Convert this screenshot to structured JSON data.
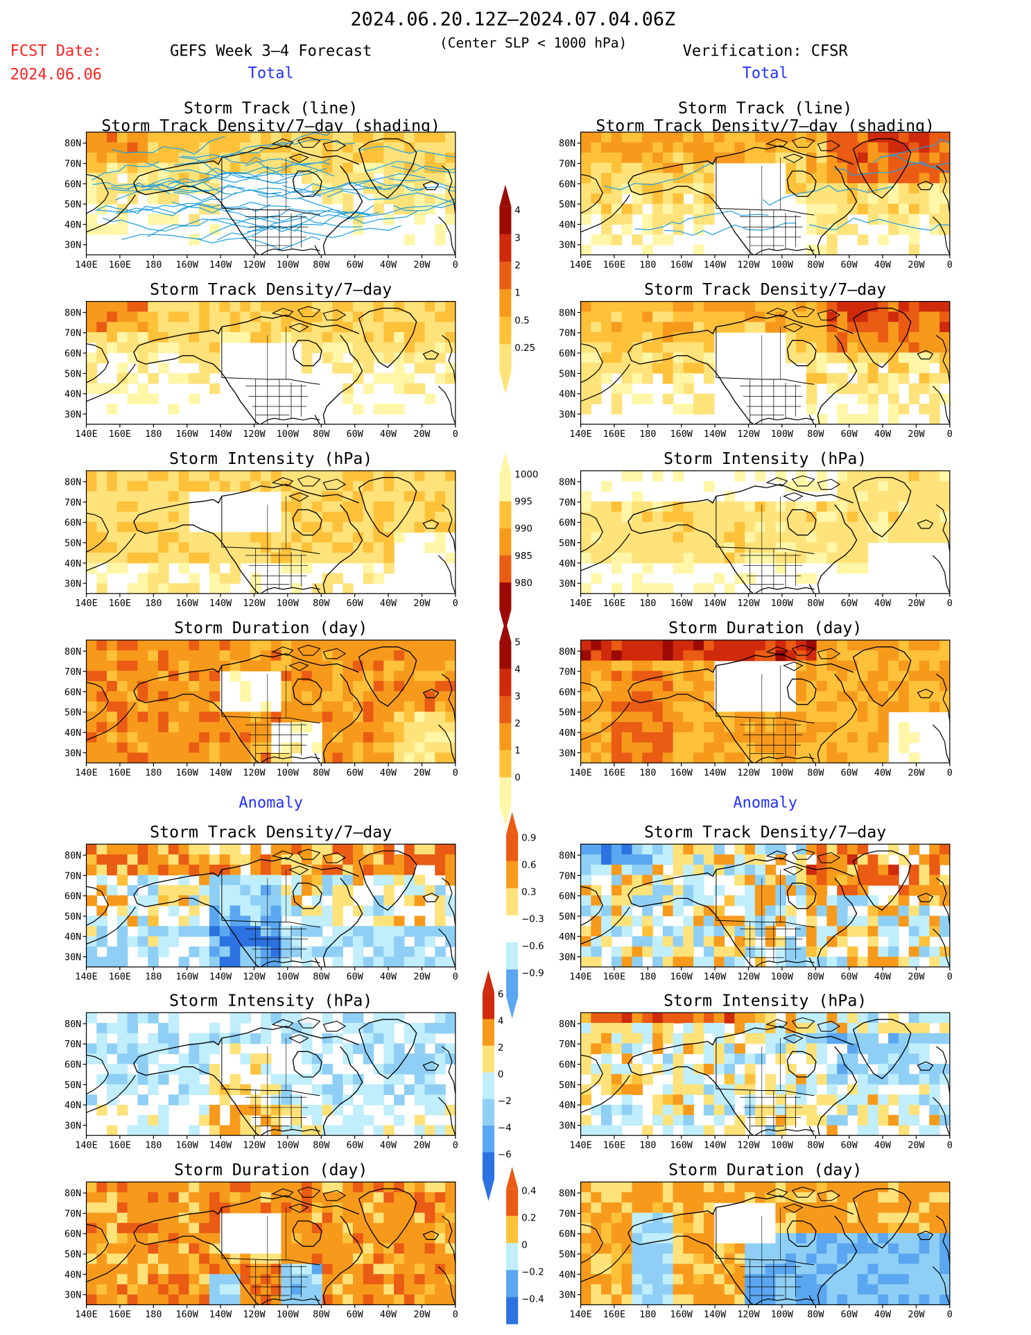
{
  "header": {
    "period": "2024.06.20.12Z–2024.07.04.06Z",
    "fcst_label": "FCST Date:",
    "fcst_date": "2024.06.06",
    "model": "GEFS Week 3–4 Forecast",
    "criterion": "(Center SLP < 1000 hPa)",
    "verification": "Verification: CFSR",
    "total_label": "Total",
    "anomaly_label": "Anomaly"
  },
  "panel_titles": {
    "track_line": "Storm Track (line)",
    "track_shading": "Storm Track Density/7–day (shading)",
    "density": "Storm Track Density/7–day",
    "intensity": "Storm Intensity (hPa)",
    "duration": "Storm Duration (day)"
  },
  "axes": {
    "lon_ticks": [
      "140E",
      "160E",
      "180",
      "160W",
      "140W",
      "120W",
      "100W",
      "80W",
      "60W",
      "40W",
      "20W",
      "0"
    ],
    "lat_ticks": [
      "80N",
      "70N",
      "60N",
      "50N",
      "40N",
      "30N"
    ]
  },
  "colorbars": {
    "density_total": {
      "labels": [
        "4",
        "3",
        "2",
        "1",
        "0.5",
        "0.25"
      ]
    },
    "intensity_total": {
      "labels": [
        "1000",
        "995",
        "990",
        "985",
        "980"
      ]
    },
    "duration_total": {
      "labels": [
        "5",
        "4",
        "3",
        "2",
        "1",
        "0"
      ]
    },
    "density_anomaly": {
      "labels": [
        "0.9",
        "0.6",
        "0.3",
        "−0.3",
        "−0.6",
        "−0.9"
      ]
    },
    "intensity_anomaly": {
      "labels": [
        "6",
        "4",
        "2",
        "0",
        "−2",
        "−4",
        "−6"
      ]
    },
    "duration_anomaly": {
      "labels": [
        "0.4",
        "0.2",
        "0",
        "−0.2",
        "−0.4"
      ]
    }
  },
  "colors": {
    "title_red": "#ff2020",
    "label_blue": "#2030ff",
    "track_line": "#1f9fe0",
    "warm": [
      "#fff6a8",
      "#ffe27a",
      "#ffc13a",
      "#f79a1c",
      "#ea5b14",
      "#cf2a0c",
      "#9c0a04"
    ],
    "cool": [
      "#c0eefc",
      "#8fcff5",
      "#5aa6f0",
      "#2c72e0",
      "#1850c8"
    ]
  }
}
